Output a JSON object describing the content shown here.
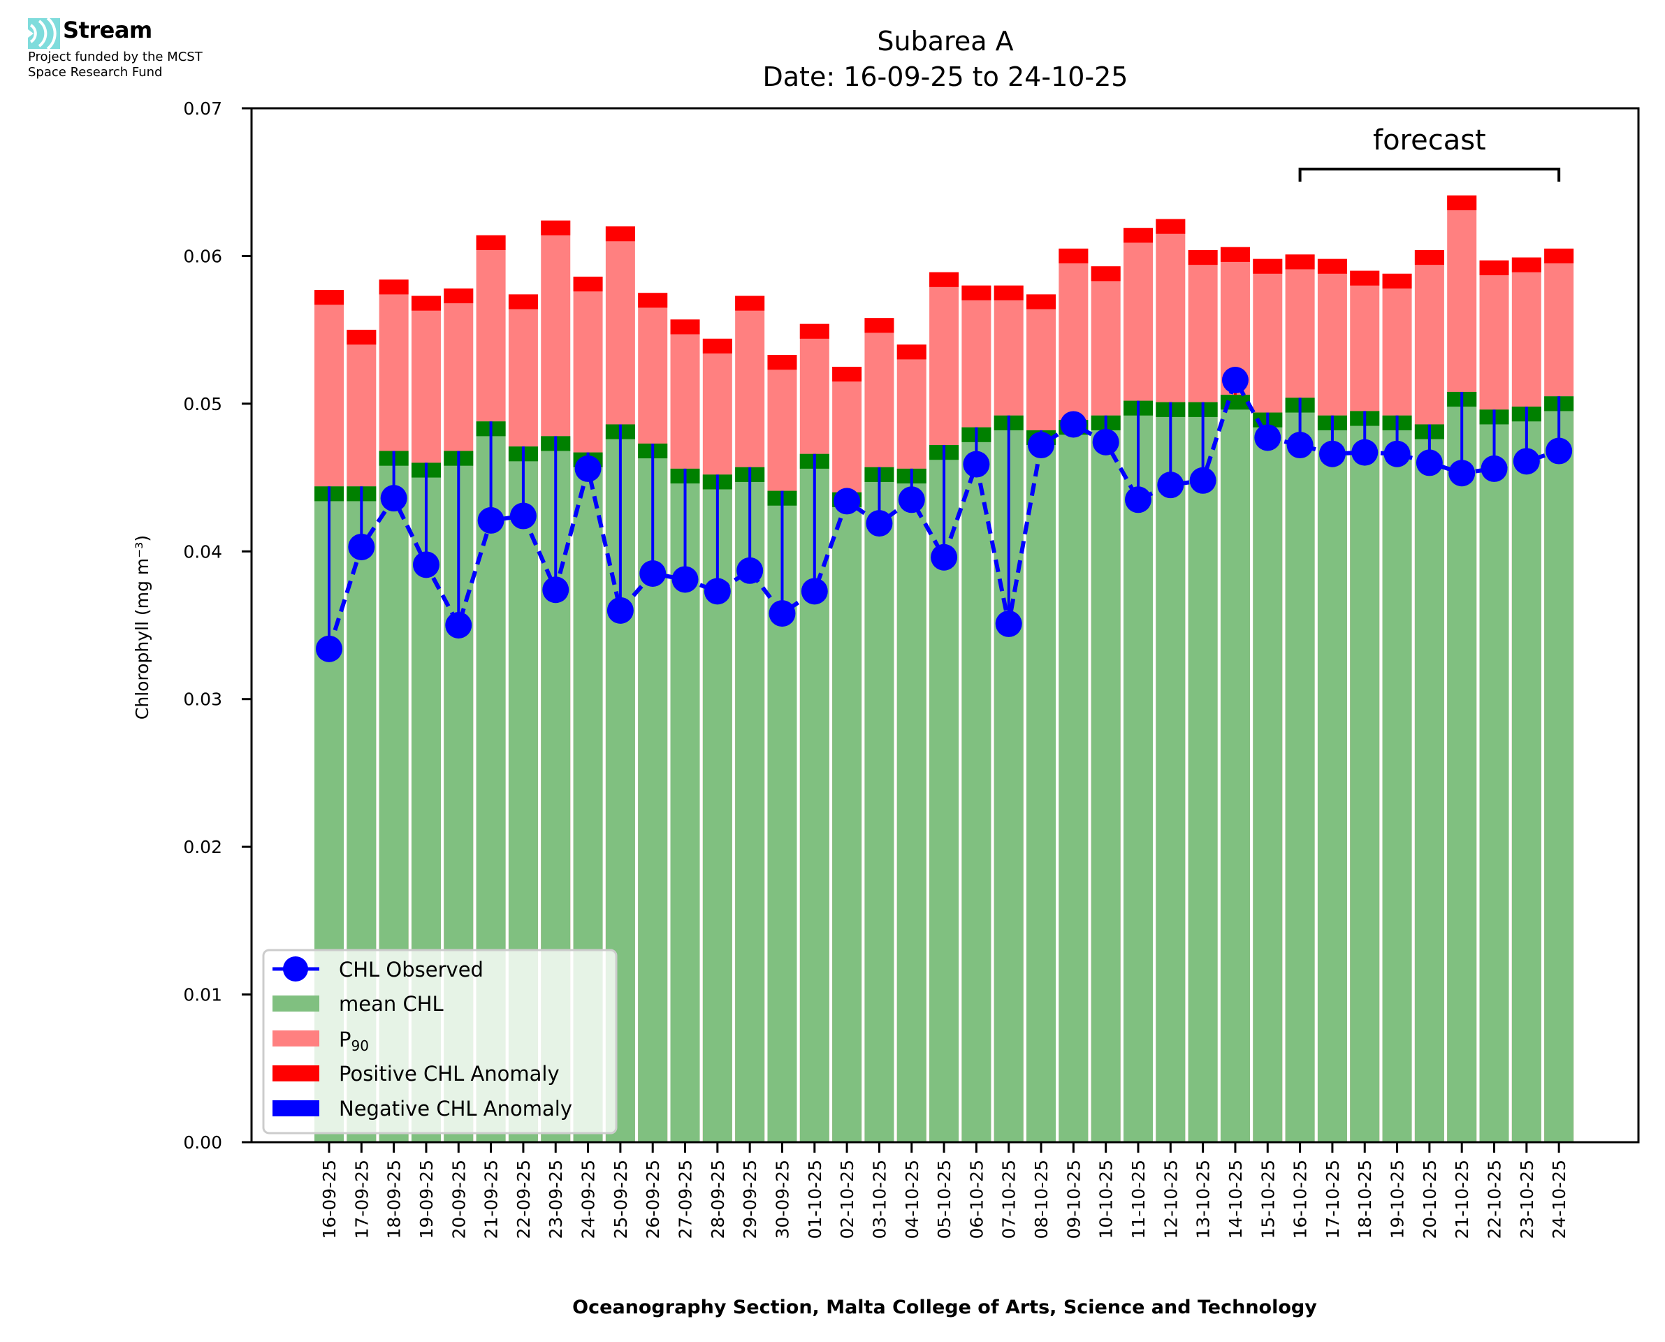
{
  "logo": {
    "name": "Stream",
    "line1": "Project funded by the MCST",
    "line2": "Space Research Fund",
    "color": "#7fdcdc"
  },
  "chart_data": {
    "type": "bar",
    "title": "Subarea A",
    "subtitle": "Date: 16-09-25 to 24-10-25",
    "xlabel": "Oceanography Section, Malta College of Arts, Science and Technology",
    "ylabel": "Chlorophyll (mg m⁻³)",
    "ylim": [
      0,
      0.07
    ],
    "yticks": [
      "0.00",
      "0.01",
      "0.02",
      "0.03",
      "0.04",
      "0.05",
      "0.06",
      "0.07"
    ],
    "ytick_values": [
      0,
      0.01,
      0.02,
      0.03,
      0.04,
      0.05,
      0.06,
      0.07
    ],
    "grid": false,
    "legend_position": "lower-left",
    "annotation": {
      "text": "forecast",
      "from": "16-10-25",
      "to": "24-10-25"
    },
    "colors": {
      "mean": "#80c080",
      "mean_band": "#008000",
      "p90": "#ff8080",
      "positive": "#ff0000",
      "negative": "#0000ff",
      "observed": "#0000ff"
    },
    "legend": [
      {
        "label": "CHL Observed",
        "kind": "line-marker",
        "color": "#0000ff"
      },
      {
        "label": "mean CHL",
        "kind": "patch",
        "color": "#80c080"
      },
      {
        "label": "P90",
        "label_main": "P",
        "label_sub": "90",
        "kind": "patch",
        "color": "#ff8080"
      },
      {
        "label": "Positive CHL Anomaly",
        "kind": "patch",
        "color": "#ff0000"
      },
      {
        "label": "Negative CHL Anomaly",
        "kind": "patch",
        "color": "#0000ff"
      }
    ],
    "categories": [
      "16-09-25",
      "17-09-25",
      "18-09-25",
      "19-09-25",
      "20-09-25",
      "21-09-25",
      "22-09-25",
      "23-09-25",
      "24-09-25",
      "25-09-25",
      "26-09-25",
      "27-09-25",
      "28-09-25",
      "29-09-25",
      "30-09-25",
      "01-10-25",
      "02-10-25",
      "03-10-25",
      "04-10-25",
      "05-10-25",
      "06-10-25",
      "07-10-25",
      "08-10-25",
      "09-10-25",
      "10-10-25",
      "11-10-25",
      "12-10-25",
      "13-10-25",
      "14-10-25",
      "15-10-25",
      "16-10-25",
      "17-10-25",
      "18-10-25",
      "19-10-25",
      "20-10-25",
      "21-10-25",
      "22-10-25",
      "23-10-25",
      "24-10-25"
    ],
    "series": [
      {
        "name": "mean CHL",
        "values": [
          0.0444,
          0.0444,
          0.0468,
          0.046,
          0.0468,
          0.0488,
          0.0471,
          0.0478,
          0.0467,
          0.0486,
          0.0473,
          0.0456,
          0.0452,
          0.0457,
          0.0441,
          0.0466,
          0.044,
          0.0457,
          0.0456,
          0.0472,
          0.0484,
          0.0492,
          0.0482,
          0.0489,
          0.0492,
          0.0502,
          0.0501,
          0.0501,
          0.0506,
          0.0494,
          0.0504,
          0.0492,
          0.0495,
          0.0492,
          0.0486,
          0.0508,
          0.0496,
          0.0498,
          0.0505
        ]
      },
      {
        "name": "P90",
        "values": [
          0.0577,
          0.055,
          0.0584,
          0.0573,
          0.0578,
          0.0614,
          0.0574,
          0.0624,
          0.0586,
          0.062,
          0.0575,
          0.0557,
          0.0544,
          0.0573,
          0.0533,
          0.0554,
          0.0525,
          0.0558,
          0.054,
          0.0589,
          0.058,
          0.058,
          0.0574,
          0.0605,
          0.0593,
          0.0619,
          0.0625,
          0.0604,
          0.0606,
          0.0598,
          0.0601,
          0.0598,
          0.059,
          0.0588,
          0.0604,
          0.0641,
          0.0597,
          0.0599,
          0.0605
        ]
      },
      {
        "name": "CHL Observed",
        "values": [
          0.0334,
          0.0403,
          0.0436,
          0.0391,
          0.035,
          0.0421,
          0.0424,
          0.0374,
          0.0456,
          0.036,
          0.0385,
          0.0381,
          0.0373,
          0.0387,
          0.0358,
          0.0373,
          0.0434,
          0.0419,
          0.0435,
          0.0396,
          0.0459,
          0.0351,
          0.0472,
          0.0486,
          0.0474,
          0.0435,
          0.0445,
          0.0448,
          0.0516,
          0.0477,
          0.0472,
          0.0466,
          0.0467,
          0.0466,
          0.046,
          0.0453,
          0.0456,
          0.0461,
          0.0468
        ]
      }
    ],
    "band_thickness": 0.001
  }
}
